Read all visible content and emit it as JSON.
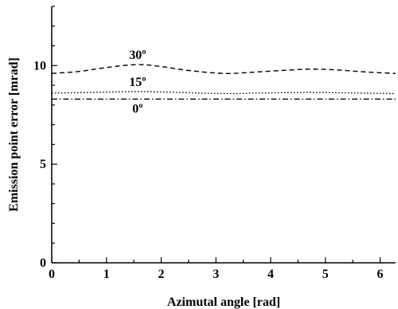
{
  "chart_data": {
    "type": "line",
    "title": "",
    "xlabel": "Azimutal angle [rad]",
    "ylabel": "Emission point error [mrad]",
    "xlim": [
      0,
      6.283
    ],
    "ylim": [
      0,
      13
    ],
    "xticks": [
      0,
      1,
      2,
      3,
      4,
      5,
      6
    ],
    "xtick_labels": [
      "0",
      "1",
      "2",
      "3",
      "4",
      "5",
      "6"
    ],
    "yticks": [
      0,
      5,
      10
    ],
    "ytick_labels": [
      "0",
      "5",
      "10"
    ],
    "grid": false,
    "legend": "none",
    "series": [
      {
        "name": "30º",
        "style": "dashed",
        "x": [
          0,
          0.5,
          1.0,
          1.57,
          2.0,
          2.5,
          3.14,
          3.6,
          4.2,
          4.71,
          5.2,
          5.7,
          6.283
        ],
        "y": [
          9.6,
          9.7,
          9.9,
          10.05,
          9.95,
          9.75,
          9.6,
          9.65,
          9.75,
          9.82,
          9.78,
          9.68,
          9.6
        ]
      },
      {
        "name": "15º",
        "style": "dotted",
        "x": [
          0,
          0.8,
          1.57,
          2.4,
          3.14,
          3.9,
          4.71,
          5.5,
          6.283
        ],
        "y": [
          8.6,
          8.64,
          8.68,
          8.63,
          8.58,
          8.61,
          8.64,
          8.61,
          8.58
        ]
      },
      {
        "name": "0º",
        "style": "dashdot",
        "x": [
          0,
          6.283
        ],
        "y": [
          8.3,
          8.3
        ]
      }
    ],
    "annotations": [
      {
        "text": "30º",
        "series": 0
      },
      {
        "text": "15º",
        "series": 1
      },
      {
        "text": "0º",
        "series": 2
      }
    ]
  }
}
